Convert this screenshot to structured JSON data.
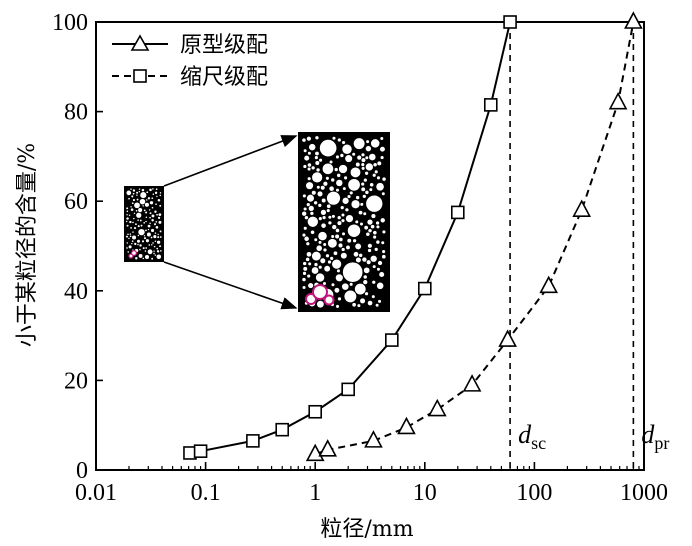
{
  "chart_data": {
    "type": "line",
    "xlabel": "粒径/mm",
    "ylabel": "小于某粒径的含量/%",
    "xscale": "log",
    "xlim": [
      0.01,
      1000
    ],
    "ylim": [
      0,
      100
    ],
    "xticks": [
      {
        "value": 0.01,
        "label": "0.01"
      },
      {
        "value": 0.1,
        "label": "0.1"
      },
      {
        "value": 1,
        "label": "1"
      },
      {
        "value": 10,
        "label": "10"
      },
      {
        "value": 100,
        "label": "100"
      },
      {
        "value": 1000,
        "label": "1000"
      }
    ],
    "yticks": [
      {
        "value": 0,
        "label": "0"
      },
      {
        "value": 20,
        "label": "20"
      },
      {
        "value": 40,
        "label": "40"
      },
      {
        "value": 60,
        "label": "60"
      },
      {
        "value": 80,
        "label": "80"
      },
      {
        "value": 100,
        "label": "100"
      }
    ],
    "legend_position": "top-left",
    "series": [
      {
        "name": "原型级配",
        "marker": "triangle",
        "line": "dashed",
        "x": [
          1,
          1.3,
          3.4,
          6.8,
          13,
          27,
          57,
          135,
          270,
          580,
          800
        ],
        "y": [
          3.5,
          4.5,
          6.5,
          9.5,
          13.5,
          19,
          29,
          41,
          58,
          82,
          100
        ]
      },
      {
        "name": "缩尺级配",
        "marker": "square",
        "line": "solid",
        "x": [
          0.072,
          0.09,
          0.27,
          0.5,
          1,
          2,
          5,
          10,
          20,
          40,
          60
        ],
        "y": [
          3.8,
          4.2,
          6.5,
          9,
          13,
          18,
          29,
          40.5,
          57.5,
          81.5,
          100
        ]
      }
    ],
    "reference_lines": [
      {
        "x": 60,
        "label": "d",
        "sub": "sc"
      },
      {
        "x": 800,
        "label": "d",
        "sub": "pr"
      }
    ]
  }
}
